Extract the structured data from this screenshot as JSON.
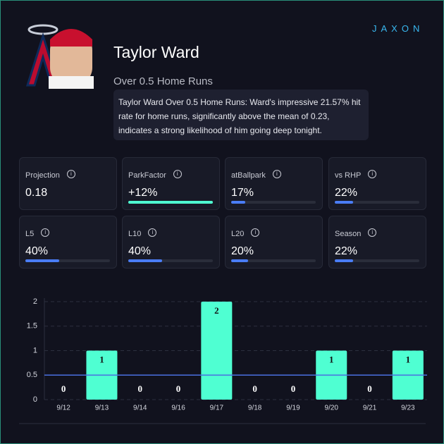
{
  "header": {
    "name": "Taylor Ward",
    "subtitle": "Over 0.5 Home Runs",
    "logo": "JAXON",
    "description": "Taylor Ward Over 0.5 Home Runs: Ward's impressive 21.57% hit rate for home runs, significantly above the mean of 0.23, indicates a strong likelihood of him going deep tonight."
  },
  "cards": [
    {
      "label": "Projection",
      "value": 0.18
    },
    {
      "label": "ParkFactor",
      "value": 12,
      "value_label": "+12%",
      "scale": [
        0,
        12
      ],
      "color": "#4fffd2"
    },
    {
      "label": "atBallpark",
      "value": 17,
      "value_label": "17%",
      "scale": [
        0,
        100
      ],
      "color": "#4a7df5"
    },
    {
      "label": "vs RHP",
      "value": 22,
      "value_label": "22%",
      "scale": [
        0,
        100
      ],
      "color": "#4a7df5"
    },
    {
      "label": "L5",
      "value": 40,
      "value_label": "40%",
      "scale": [
        0,
        100
      ],
      "color": "#4a7df5"
    },
    {
      "label": "L10",
      "value": 40,
      "value_label": "40%",
      "scale": [
        0,
        100
      ],
      "color": "#4a7df5"
    },
    {
      "label": "L20",
      "value": 20,
      "value_label": "20%",
      "scale": [
        0,
        100
      ],
      "color": "#4a7df5"
    },
    {
      "label": "Season",
      "value": 22,
      "value_label": "22%",
      "scale": [
        0,
        100
      ],
      "color": "#4a7df5"
    }
  ],
  "chart_data": {
    "type": "bar",
    "categories": [
      "9/12",
      "9/13",
      "9/14",
      "9/16",
      "9/17",
      "9/18",
      "9/19",
      "9/20",
      "9/21",
      "9/23"
    ],
    "values": [
      0,
      1,
      0,
      0,
      2,
      0,
      0,
      1,
      0,
      1
    ],
    "color": "#4fffd2",
    "ylim": [
      0,
      2
    ],
    "yticks": [
      0,
      0.5,
      1,
      1.5,
      2
    ],
    "grid": true,
    "reference_line": 0.5,
    "reference_color": "#4a6fe0"
  }
}
